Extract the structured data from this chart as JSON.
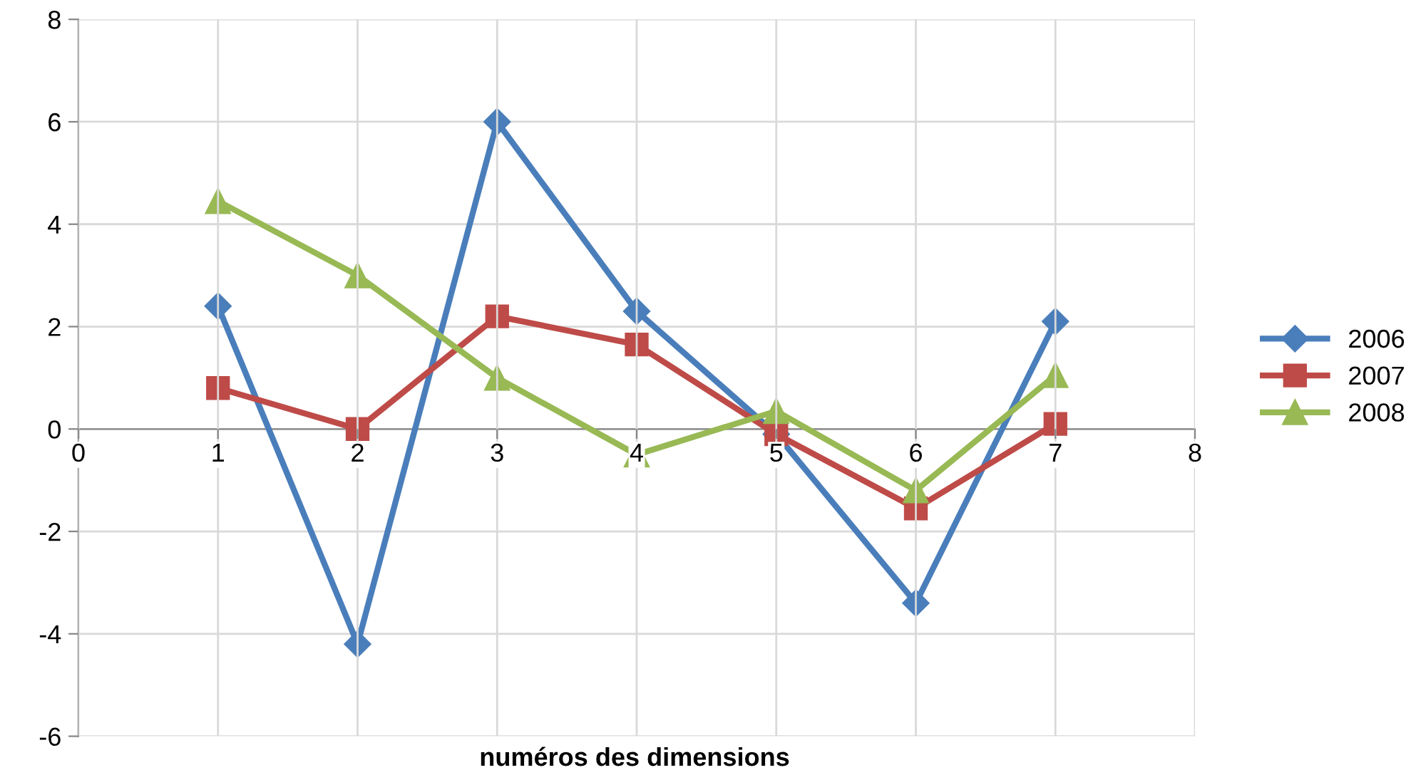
{
  "chart_data": {
    "type": "line",
    "xlabel": "numéros des dimensions",
    "x": [
      1,
      2,
      3,
      4,
      5,
      6,
      7
    ],
    "series": [
      {
        "name": "2006",
        "color": "#4a7ebb",
        "marker": "diamond",
        "values": [
          2.4,
          -4.2,
          6.0,
          2.3,
          -0.1,
          -3.4,
          2.1
        ]
      },
      {
        "name": "2007",
        "color": "#be4b48",
        "marker": "square",
        "values": [
          0.8,
          0.0,
          2.2,
          1.65,
          -0.1,
          -1.55,
          0.1
        ]
      },
      {
        "name": "2008",
        "color": "#98b954",
        "marker": "triangle",
        "values": [
          4.45,
          3.0,
          1.0,
          -0.5,
          0.35,
          -1.2,
          1.05
        ]
      }
    ],
    "xlim": [
      0,
      8
    ],
    "xticks": [
      0,
      1,
      2,
      3,
      4,
      5,
      6,
      7,
      8
    ],
    "ylim": [
      -6,
      8
    ],
    "yticks": [
      -6,
      -4,
      -2,
      0,
      2,
      4,
      6,
      8
    ],
    "grid": true,
    "legend": "right",
    "line_style": "solid"
  }
}
